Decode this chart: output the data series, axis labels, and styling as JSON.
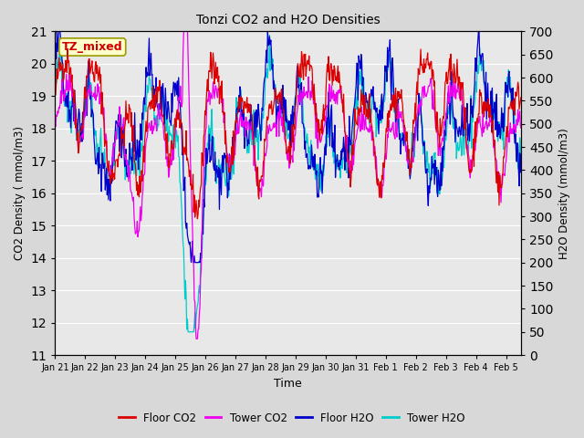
{
  "title": "Tonzi CO2 and H2O Densities",
  "xlabel": "Time",
  "ylabel_left": "CO2 Density ( mmol/m3)",
  "ylabel_right": "H2O Density (mmol/m3)",
  "annotation_text": "TZ_mixed",
  "annotation_color": "#cc0000",
  "annotation_bg": "#ffffcc",
  "annotation_border": "#999900",
  "ylim_left": [
    11.0,
    21.0
  ],
  "ylim_right": [
    0,
    700
  ],
  "yticks_left": [
    11,
    12,
    13,
    14,
    15,
    16,
    17,
    18,
    19,
    20,
    21
  ],
  "yticks_right": [
    0,
    50,
    100,
    150,
    200,
    250,
    300,
    350,
    400,
    450,
    500,
    550,
    600,
    650,
    700
  ],
  "n_days": 15.5,
  "colors": {
    "floor_co2": "#dd0000",
    "tower_co2": "#ee00ee",
    "floor_h2o": "#0000cc",
    "tower_h2o": "#00cccc"
  },
  "legend_labels": [
    "Floor CO2",
    "Tower CO2",
    "Floor H2O",
    "Tower H2O"
  ],
  "fig_bg": "#d8d8d8",
  "axes_bg": "#e8e8e8",
  "grid_color": "#ffffff",
  "figsize": [
    6.4,
    4.8
  ],
  "dpi": 100
}
